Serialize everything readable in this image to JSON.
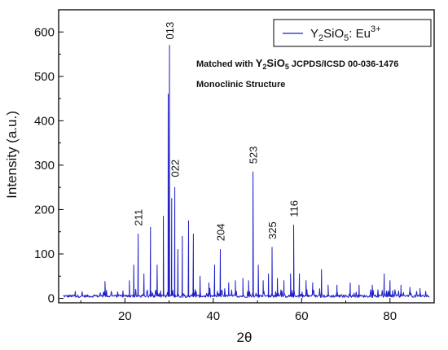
{
  "chart_data": {
    "type": "line",
    "xlabel": "2θ",
    "ylabel": "Intensity (a.u.)",
    "xlim": [
      5,
      90
    ],
    "ylim": [
      -10,
      650
    ],
    "x_ticks": [
      20,
      40,
      60,
      80
    ],
    "y_ticks": [
      0,
      100,
      200,
      300,
      400,
      500,
      600
    ],
    "grid": false,
    "legend_position": "top-right",
    "series": [
      {
        "name": "Y2SiO5: Eu3+",
        "legend": {
          "base": "Y",
          "sub1": "2",
          "mid": "SiO",
          "sub2": "5",
          "tail": ": Eu",
          "sup": "3+"
        },
        "color": "#1f1fc8",
        "peaks": [
          {
            "x": 15.5,
            "y": 38
          },
          {
            "x": 21.0,
            "y": 40
          },
          {
            "x": 22.0,
            "y": 75
          },
          {
            "x": 23.0,
            "y": 145
          },
          {
            "x": 24.3,
            "y": 55
          },
          {
            "x": 25.8,
            "y": 160
          },
          {
            "x": 27.3,
            "y": 75
          },
          {
            "x": 28.7,
            "y": 185
          },
          {
            "x": 29.8,
            "y": 460
          },
          {
            "x": 30.1,
            "y": 570
          },
          {
            "x": 30.6,
            "y": 225
          },
          {
            "x": 31.3,
            "y": 250
          },
          {
            "x": 32.0,
            "y": 110
          },
          {
            "x": 33.0,
            "y": 140
          },
          {
            "x": 34.4,
            "y": 175
          },
          {
            "x": 35.5,
            "y": 145
          },
          {
            "x": 37.0,
            "y": 50
          },
          {
            "x": 39.0,
            "y": 35
          },
          {
            "x": 40.3,
            "y": 75
          },
          {
            "x": 41.6,
            "y": 110
          },
          {
            "x": 43.5,
            "y": 35
          },
          {
            "x": 45.0,
            "y": 40
          },
          {
            "x": 46.7,
            "y": 45
          },
          {
            "x": 48.0,
            "y": 40
          },
          {
            "x": 49.0,
            "y": 285
          },
          {
            "x": 50.2,
            "y": 75
          },
          {
            "x": 51.3,
            "y": 40
          },
          {
            "x": 52.5,
            "y": 55
          },
          {
            "x": 53.3,
            "y": 115
          },
          {
            "x": 54.5,
            "y": 45
          },
          {
            "x": 56.0,
            "y": 40
          },
          {
            "x": 57.5,
            "y": 55
          },
          {
            "x": 58.2,
            "y": 165
          },
          {
            "x": 59.5,
            "y": 55
          },
          {
            "x": 61.0,
            "y": 40
          },
          {
            "x": 62.5,
            "y": 35
          },
          {
            "x": 64.5,
            "y": 65
          },
          {
            "x": 66.0,
            "y": 30
          },
          {
            "x": 68.0,
            "y": 30
          },
          {
            "x": 71.0,
            "y": 35
          },
          {
            "x": 73.0,
            "y": 30
          },
          {
            "x": 76.0,
            "y": 30
          },
          {
            "x": 78.7,
            "y": 55
          },
          {
            "x": 80.0,
            "y": 40
          },
          {
            "x": 82.5,
            "y": 30
          },
          {
            "x": 84.5,
            "y": 25
          },
          {
            "x": 86.8,
            "y": 22
          }
        ]
      }
    ],
    "annotations": [
      {
        "label": "013",
        "x": 30.1,
        "y": 572
      },
      {
        "label": "022",
        "x": 31.3,
        "y": 262
      },
      {
        "label": "211",
        "x": 23.0,
        "y": 152
      },
      {
        "label": "204",
        "x": 41.6,
        "y": 118
      },
      {
        "label": "523",
        "x": 49.0,
        "y": 292
      },
      {
        "label": "325",
        "x": 53.3,
        "y": 122
      },
      {
        "label": "116",
        "x": 58.2,
        "y": 172
      }
    ],
    "notes": {
      "line1": {
        "pre": "Matched with ",
        "y": "Y",
        "sub1": "2",
        "mid": "SiO",
        "sub2": "5",
        "post": " JCPDS/ICSD 00-036-1476"
      },
      "line2": "Monoclinic Structure"
    }
  }
}
